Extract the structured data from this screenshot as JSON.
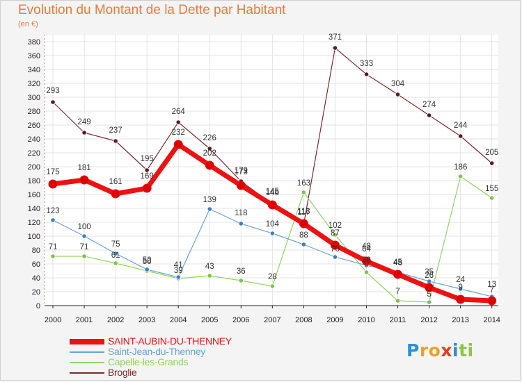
{
  "header": {
    "title": "Evolution du Montant de la Dette par Habitant",
    "unit": "(en €)"
  },
  "colors": {
    "title": "#ee7a3a",
    "axis": "#222222",
    "grid": "#e3e3e3",
    "plot_bg": "#ffffff"
  },
  "chart_data": {
    "type": "line",
    "x": [
      2000,
      2001,
      2002,
      2003,
      2004,
      2005,
      2006,
      2007,
      2008,
      2009,
      2010,
      2011,
      2012,
      2013,
      2014
    ],
    "ylim": [
      0,
      380
    ],
    "yticks": [
      0,
      20,
      40,
      60,
      80,
      100,
      120,
      140,
      160,
      180,
      200,
      220,
      240,
      260,
      280,
      300,
      320,
      340,
      360,
      380
    ],
    "grid": true,
    "legend_position": "bottom-left",
    "series": [
      {
        "name": "Broglie",
        "color": "#7b2a2a",
        "marker": "#5e1a1a",
        "width": 1.2,
        "values": [
          293,
          249,
          237,
          195,
          264,
          226,
          179,
          146,
          117,
          371,
          333,
          304,
          274,
          244,
          205
        ]
      },
      {
        "name": "Capelle-les-Grands",
        "color": "#8fd460",
        "marker": "#7cc44c",
        "width": 1.2,
        "values": [
          71,
          71,
          61,
          50,
          39,
          43,
          36,
          28,
          163,
          102,
          48,
          7,
          5,
          186,
          155
        ]
      },
      {
        "name": "Saint-Jean-du-Thenney",
        "color": "#6ba3d6",
        "marker": "#3d7fc4",
        "width": 1.2,
        "values": [
          123,
          100,
          75,
          52,
          41,
          139,
          118,
          104,
          88,
          70,
          58,
          48,
          35,
          24,
          13
        ]
      },
      {
        "name": "SAINT-AUBIN-DU-THENNEY",
        "color": "#ee1111",
        "marker": "#dd0000",
        "width": 7,
        "values": [
          175,
          181,
          161,
          169,
          232,
          202,
          173,
          145,
          118,
          87,
          64,
          45,
          26,
          9,
          7
        ]
      }
    ],
    "legend_order": [
      3,
      2,
      1,
      0
    ],
    "labels": [
      {
        "text": "293",
        "series": 0,
        "i": 0,
        "dy": -13
      },
      {
        "text": "249",
        "series": 0,
        "i": 1,
        "dy": -12
      },
      {
        "text": "237",
        "series": 0,
        "i": 2,
        "dy": -12
      },
      {
        "text": "195",
        "series": 0,
        "i": 3,
        "dy": -13
      },
      {
        "text": "264",
        "series": 0,
        "i": 4,
        "dy": -12
      },
      {
        "text": "226",
        "series": 0,
        "i": 5,
        "dy": -12
      },
      {
        "text": "179",
        "series": 0,
        "i": 6,
        "dy": -12
      },
      {
        "text": "146",
        "series": 0,
        "i": 7,
        "dy": -13
      },
      {
        "text": "117",
        "series": 0,
        "i": 8,
        "dy": -14
      },
      {
        "text": "371",
        "series": 0,
        "i": 9,
        "dy": -12
      },
      {
        "text": "333",
        "series": 0,
        "i": 10,
        "dy": -12
      },
      {
        "text": "304",
        "series": 0,
        "i": 11,
        "dy": -12
      },
      {
        "text": "274",
        "series": 0,
        "i": 12,
        "dy": -12
      },
      {
        "text": "244",
        "series": 0,
        "i": 13,
        "dy": -12
      },
      {
        "text": "205",
        "series": 0,
        "i": 14,
        "dy": -12
      },
      {
        "text": "175",
        "series": 3,
        "i": 0,
        "dy": -14
      },
      {
        "text": "181",
        "series": 3,
        "i": 1,
        "dy": -14
      },
      {
        "text": "161",
        "series": 3,
        "i": 2,
        "dy": -14
      },
      {
        "text": "169",
        "series": 3,
        "i": 3,
        "dy": -14
      },
      {
        "text": "232",
        "series": 3,
        "i": 4,
        "dy": -14
      },
      {
        "text": "202",
        "series": 3,
        "i": 5,
        "dy": -14
      },
      {
        "text": "173",
        "series": 3,
        "i": 6,
        "dy": -16
      },
      {
        "text": "145",
        "series": 3,
        "i": 7,
        "dy": -16
      },
      {
        "text": "118",
        "series": 3,
        "i": 8,
        "dy": -14
      },
      {
        "text": "87",
        "series": 3,
        "i": 9,
        "dy": -14
      },
      {
        "text": "64",
        "series": 3,
        "i": 10,
        "dy": -14
      },
      {
        "text": "45",
        "series": 3,
        "i": 11,
        "dy": -14
      },
      {
        "text": "26",
        "series": 3,
        "i": 12,
        "dy": -14
      },
      {
        "text": "9",
        "series": 3,
        "i": 13,
        "dy": -14
      },
      {
        "text": "7",
        "series": 3,
        "i": 14,
        "dy": -12
      },
      {
        "text": "123",
        "series": 2,
        "i": 0,
        "dy": -10
      },
      {
        "text": "100",
        "series": 2,
        "i": 1,
        "dy": -10
      },
      {
        "text": "75",
        "series": 2,
        "i": 2,
        "dy": -10
      },
      {
        "text": "52",
        "series": 2,
        "i": 3,
        "dy": -10
      },
      {
        "text": "41",
        "series": 2,
        "i": 4,
        "dy": -14
      },
      {
        "text": "139",
        "series": 2,
        "i": 5,
        "dy": -10
      },
      {
        "text": "118",
        "series": 2,
        "i": 6,
        "dy": -12
      },
      {
        "text": "104",
        "series": 2,
        "i": 7,
        "dy": -10
      },
      {
        "text": "88",
        "series": 2,
        "i": 8,
        "dy": -10
      },
      {
        "text": "70",
        "series": 2,
        "i": 9,
        "dy": -8
      },
      {
        "text": "58",
        "series": 2,
        "i": 10,
        "dy": -4
      },
      {
        "text": "48",
        "series": 2,
        "i": 11,
        "dy": -10
      },
      {
        "text": "35",
        "series": 2,
        "i": 12,
        "dy": -10
      },
      {
        "text": "24",
        "series": 2,
        "i": 13,
        "dy": -10
      },
      {
        "text": "13",
        "series": 2,
        "i": 14,
        "dy": -14
      },
      {
        "text": "71",
        "series": 1,
        "i": 0,
        "dy": -10
      },
      {
        "text": "71",
        "series": 1,
        "i": 1,
        "dy": -10
      },
      {
        "text": "61",
        "series": 1,
        "i": 2,
        "dy": -8
      },
      {
        "text": "50",
        "series": 1,
        "i": 3,
        "dy": -10
      },
      {
        "text": "39",
        "series": 1,
        "i": 4,
        "dy": -8
      },
      {
        "text": "43",
        "series": 1,
        "i": 5,
        "dy": -10
      },
      {
        "text": "36",
        "series": 1,
        "i": 6,
        "dy": -10
      },
      {
        "text": "28",
        "series": 1,
        "i": 7,
        "dy": -10
      },
      {
        "text": "163",
        "series": 1,
        "i": 8,
        "dy": -10
      },
      {
        "text": "102",
        "series": 1,
        "i": 9,
        "dy": -10
      },
      {
        "text": "48",
        "series": 1,
        "i": 10,
        "dy": -34
      },
      {
        "text": "7",
        "series": 1,
        "i": 11,
        "dy": -10
      },
      {
        "text": "5",
        "series": 1,
        "i": 12,
        "dy": -8
      },
      {
        "text": "186",
        "series": 1,
        "i": 13,
        "dy": -10
      },
      {
        "text": "155",
        "series": 1,
        "i": 14,
        "dy": -10
      }
    ]
  },
  "legend": {
    "items": [
      "SAINT-AUBIN-DU-THENNEY",
      "Saint-Jean-du-Thenney",
      "Capelle-les-Grands",
      "Broglie"
    ]
  },
  "brand": {
    "letters": [
      "P",
      "r",
      "o",
      "x",
      "i",
      "t",
      "i"
    ],
    "colors": [
      "#2d8fd6",
      "#f0a020",
      "#f0a020",
      "#e04020",
      "#2d8fd6",
      "#8cc63f",
      "#8cc63f"
    ]
  }
}
